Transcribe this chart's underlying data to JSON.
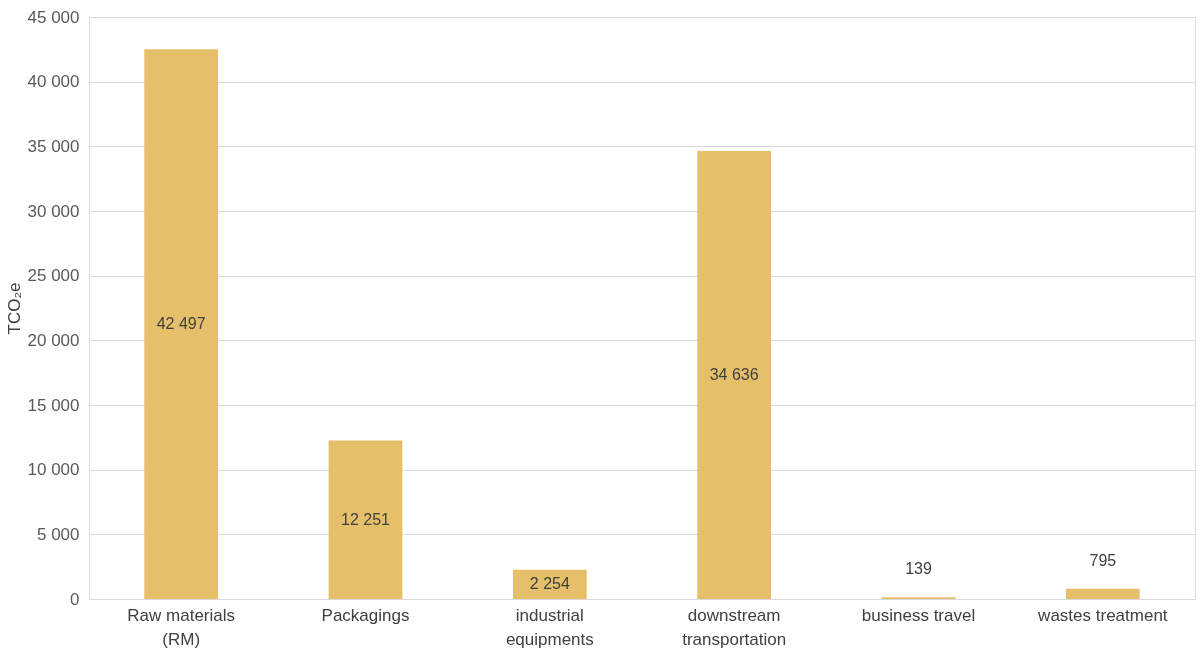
{
  "chart_data": {
    "type": "bar",
    "categories": [
      "Raw materials (RM)",
      "Packagings",
      "industrial equipments",
      "downstream transportation",
      "business travel",
      "wastes treatment"
    ],
    "values": [
      42497,
      12251,
      2254,
      34636,
      139,
      795
    ],
    "value_labels": [
      "42 497",
      "12 251",
      "2 254",
      "34 636",
      "139",
      "795"
    ],
    "color": "#e6bf6a",
    "ylabel": "TCO₂e",
    "ylim": [
      0,
      45000
    ],
    "yticks": [
      0,
      {
        "value": 5000,
        "label": "5 000"
      },
      {
        "value": 10000,
        "label": "10 000"
      },
      {
        "value": 15000,
        "label": "15 000"
      },
      {
        "value": 20000,
        "label": "20 000"
      },
      {
        "value": 25000,
        "label": "25 000"
      },
      {
        "value": 30000,
        "label": "30 000"
      },
      {
        "value": 35000,
        "label": "35 000"
      },
      {
        "value": 40000,
        "label": "40 000"
      },
      {
        "value": 45000,
        "label": "45 000"
      }
    ],
    "grid": "y"
  }
}
